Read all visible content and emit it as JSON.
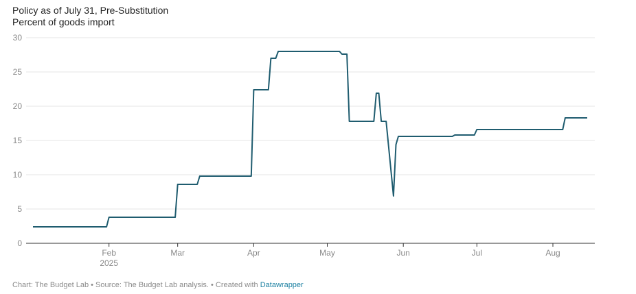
{
  "chart_data": {
    "type": "line",
    "title": "Policy as of July 31, Pre-Substitution",
    "subtitle": "Percent of goods import",
    "xlabel": "",
    "ylabel": "",
    "ylim": [
      0,
      30
    ],
    "yticks": [
      0,
      5,
      10,
      15,
      20,
      25,
      30
    ],
    "x_axis": {
      "type": "date",
      "range": [
        "2025-01-01",
        "2025-08-15"
      ],
      "ticks": [
        {
          "date": "2025-02-01",
          "label": "Feb",
          "sublabel": "2025"
        },
        {
          "date": "2025-03-01",
          "label": "Mar",
          "sublabel": ""
        },
        {
          "date": "2025-04-01",
          "label": "Apr",
          "sublabel": ""
        },
        {
          "date": "2025-05-01",
          "label": "May",
          "sublabel": ""
        },
        {
          "date": "2025-06-01",
          "label": "Jun",
          "sublabel": ""
        },
        {
          "date": "2025-07-01",
          "label": "Jul",
          "sublabel": ""
        },
        {
          "date": "2025-08-01",
          "label": "Aug",
          "sublabel": ""
        }
      ]
    },
    "grid": true,
    "line_color": "#1f5c6f",
    "series": [
      {
        "name": "",
        "points": [
          [
            "2025-01-01",
            2.4
          ],
          [
            "2025-01-31",
            2.4
          ],
          [
            "2025-02-01",
            3.8
          ],
          [
            "2025-02-28",
            3.8
          ],
          [
            "2025-03-01",
            8.6
          ],
          [
            "2025-03-09",
            8.6
          ],
          [
            "2025-03-10",
            9.8
          ],
          [
            "2025-03-31",
            9.8
          ],
          [
            "2025-04-01",
            22.4
          ],
          [
            "2025-04-07",
            22.4
          ],
          [
            "2025-04-08",
            27.0
          ],
          [
            "2025-04-10",
            27.0
          ],
          [
            "2025-04-11",
            28.0
          ],
          [
            "2025-05-06",
            28.0
          ],
          [
            "2025-05-07",
            27.6
          ],
          [
            "2025-05-09",
            27.6
          ],
          [
            "2025-05-10",
            17.8
          ],
          [
            "2025-05-20",
            17.8
          ],
          [
            "2025-05-21",
            21.9
          ],
          [
            "2025-05-22",
            21.9
          ],
          [
            "2025-05-23",
            17.8
          ],
          [
            "2025-05-25",
            17.8
          ],
          [
            "2025-05-28",
            6.9
          ],
          [
            "2025-05-29",
            14.4
          ],
          [
            "2025-05-30",
            15.6
          ],
          [
            "2025-06-21",
            15.6
          ],
          [
            "2025-06-22",
            15.8
          ],
          [
            "2025-06-30",
            15.8
          ],
          [
            "2025-07-01",
            16.6
          ],
          [
            "2025-08-05",
            16.6
          ],
          [
            "2025-08-06",
            18.3
          ],
          [
            "2025-08-15",
            18.3
          ]
        ]
      }
    ]
  },
  "footer": {
    "text": "Chart: The Budget Lab • Source: The Budget Lab analysis. • Created with ",
    "link_text": "Datawrapper"
  }
}
